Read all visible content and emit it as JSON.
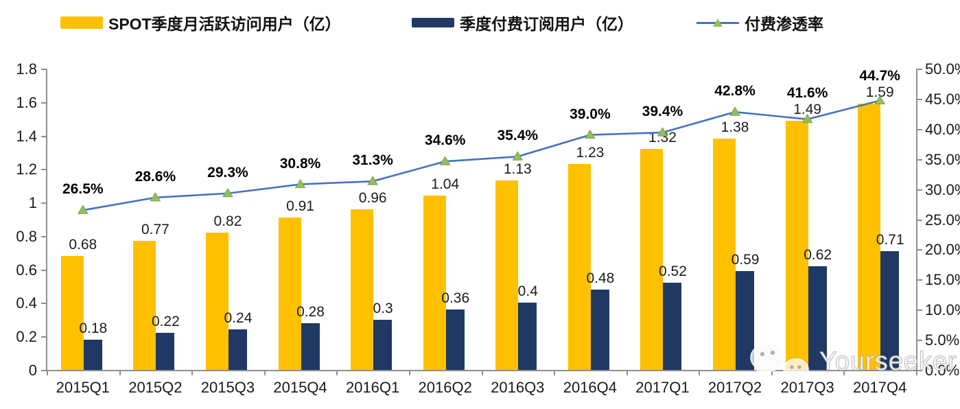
{
  "legend": [
    {
      "label": "SPOT季度月活跃访问用户（亿）",
      "color": "#FFC000",
      "type": "bar"
    },
    {
      "label": "季度付费订阅用户（亿）",
      "color": "#1F3864",
      "type": "bar"
    },
    {
      "label": "付费渗透率",
      "color": "#4472C4",
      "marker_color": "#94BE5C",
      "type": "line"
    }
  ],
  "watermark": {
    "icon": "wechat-icon",
    "text": "Yourseeker"
  },
  "chart_data": {
    "type": "bar",
    "subtype": "grouped-bars-with-line-combo",
    "categories": [
      "2015Q1",
      "2015Q2",
      "2015Q3",
      "2015Q4",
      "2016Q1",
      "2016Q2",
      "2016Q3",
      "2016Q4",
      "2017Q1",
      "2017Q2",
      "2017Q3",
      "2017Q4"
    ],
    "series": [
      {
        "name": "SPOT季度月活跃访问用户（亿）",
        "type": "bar",
        "axis": "left",
        "color": "#FFC000",
        "values": [
          0.68,
          0.77,
          0.82,
          0.91,
          0.96,
          1.04,
          1.13,
          1.23,
          1.32,
          1.38,
          1.49,
          1.59
        ],
        "labels": [
          "0.68",
          "0.77",
          "0.82",
          "0.91",
          "0.96",
          "1.04",
          "1.13",
          "1.23",
          "1.32",
          "1.38",
          "1.49",
          "1.59"
        ]
      },
      {
        "name": "季度付费订阅用户（亿）",
        "type": "bar",
        "axis": "left",
        "color": "#1F3864",
        "values": [
          0.18,
          0.22,
          0.24,
          0.28,
          0.3,
          0.36,
          0.4,
          0.48,
          0.52,
          0.59,
          0.62,
          0.71
        ],
        "labels": [
          "0.18",
          "0.22",
          "0.24",
          "0.28",
          "0.3",
          "0.36",
          "0.4",
          "0.48",
          "0.52",
          "0.59",
          "0.62",
          "0.71"
        ]
      },
      {
        "name": "付费渗透率",
        "type": "line",
        "axis": "right",
        "color": "#4472C4",
        "marker": "triangle",
        "marker_color": "#94BE5C",
        "values": [
          26.5,
          28.6,
          29.3,
          30.8,
          31.3,
          34.6,
          35.4,
          39.0,
          39.4,
          42.8,
          41.6,
          44.7
        ],
        "labels": [
          "26.5%",
          "28.6%",
          "29.3%",
          "30.8%",
          "31.3%",
          "34.6%",
          "35.4%",
          "39.0%",
          "39.4%",
          "42.8%",
          "41.6%",
          "44.7%"
        ]
      }
    ],
    "left_axis": {
      "min": 0,
      "max": 1.8,
      "step": 0.2,
      "ticks": [
        "0",
        "0.2",
        "0.4",
        "0.6",
        "0.8",
        "1",
        "1.2",
        "1.4",
        "1.6",
        "1.8"
      ]
    },
    "right_axis": {
      "min": 0,
      "max": 50,
      "step": 5,
      "ticks": [
        "0.0%",
        "5.0%",
        "10.0%",
        "15.0%",
        "20.0%",
        "25.0%",
        "30.0%",
        "35.0%",
        "40.0%",
        "45.0%",
        "50.0%"
      ]
    },
    "grid": false,
    "legend_position": "top",
    "title": ""
  }
}
